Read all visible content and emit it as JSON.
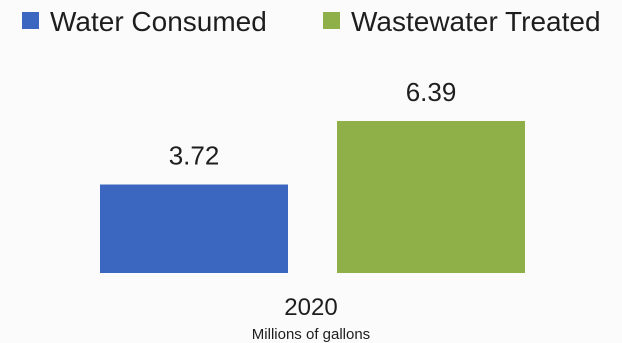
{
  "chart_data": {
    "type": "bar",
    "categories": [
      "2020"
    ],
    "series": [
      {
        "name": "Water Consumed",
        "values": [
          3.72
        ],
        "color": "#3c67c0"
      },
      {
        "name": "Wastewater Treated",
        "values": [
          6.39
        ],
        "color": "#8fb048"
      }
    ],
    "xlabel": "Millions of gallons",
    "ylabel": "",
    "ylim": [
      0,
      6.39
    ],
    "grid": false,
    "legend": "top"
  }
}
